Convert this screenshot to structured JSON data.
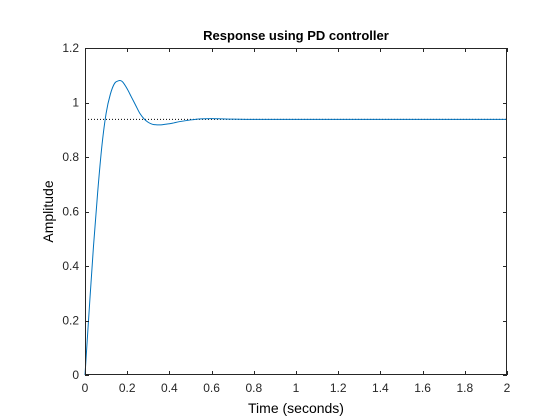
{
  "chart_data": {
    "type": "line",
    "title": "Response using PD controller",
    "xlabel": "Time (seconds)",
    "ylabel": "Amplitude",
    "xlim": [
      0,
      2
    ],
    "ylim": [
      0,
      1.2
    ],
    "xticks": [
      0,
      0.2,
      0.4,
      0.6,
      0.8,
      1,
      1.2,
      1.4,
      1.6,
      1.8,
      2
    ],
    "yticks": [
      0,
      0.2,
      0.4,
      0.6,
      0.8,
      1,
      1.2
    ],
    "xtick_labels": [
      "0",
      "0.2",
      "0.4",
      "0.6",
      "0.8",
      "1",
      "1.2",
      "1.4",
      "1.6",
      "1.8",
      "2"
    ],
    "ytick_labels": [
      "0",
      "0.2",
      "0.4",
      "0.6",
      "0.8",
      "1",
      "1.2"
    ],
    "grid": false,
    "reference_line": {
      "y": 0.938,
      "x_range": [
        0,
        2
      ],
      "style": "dotted",
      "color": "#000000"
    },
    "series": [
      {
        "color": "#0072BD",
        "x": [
          0,
          0.02,
          0.04,
          0.06,
          0.08,
          0.1,
          0.12,
          0.14,
          0.16,
          0.17,
          0.18,
          0.2,
          0.22,
          0.24,
          0.26,
          0.28,
          0.3,
          0.32,
          0.34,
          0.36,
          0.38,
          0.4,
          0.42,
          0.45,
          0.5,
          0.55,
          0.6,
          0.65,
          0.7,
          0.8,
          0.9,
          1,
          1.2,
          1.4,
          1.6,
          1.8,
          2
        ],
        "y": [
          0,
          0.24,
          0.47,
          0.67,
          0.84,
          0.96,
          1.03,
          1.07,
          1.08,
          1.08,
          1.074,
          1.05,
          1.02,
          0.99,
          0.96,
          0.94,
          0.927,
          0.92,
          0.918,
          0.918,
          0.92,
          0.922,
          0.925,
          0.93,
          0.936,
          0.94,
          0.941,
          0.94,
          0.939,
          0.938,
          0.938,
          0.938,
          0.938,
          0.938,
          0.938,
          0.938,
          0.938
        ]
      }
    ]
  }
}
